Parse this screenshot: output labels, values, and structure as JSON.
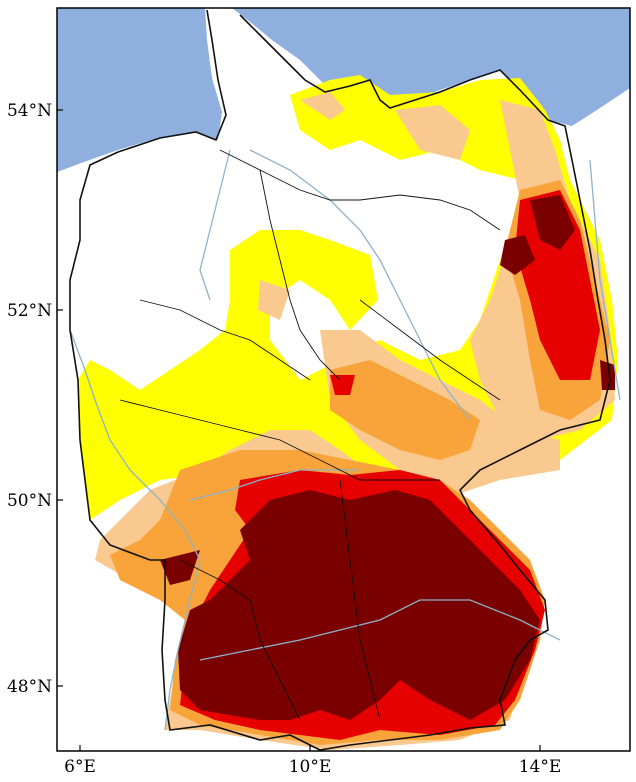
{
  "map": {
    "axes": {
      "lon": {
        "ticks": [
          {
            "value": 6,
            "label": "6°E"
          },
          {
            "value": 10,
            "label": "10°E"
          },
          {
            "value": 14,
            "label": "14°E"
          }
        ]
      },
      "lat": {
        "ticks": [
          {
            "value": 54,
            "label": "54°N"
          },
          {
            "value": 52,
            "label": "52°N"
          },
          {
            "value": 50,
            "label": "50°N"
          },
          {
            "value": 48,
            "label": "48°N"
          }
        ]
      }
    },
    "colors": {
      "sea": "#8fb0df",
      "land": "#ffffff",
      "river": "#8eb2c9",
      "border": "#111111",
      "class_1": "#ffff00",
      "class_2": "#f9c98f",
      "class_3": "#f8a43a",
      "class_4": "#e60000",
      "class_5": "#7a0000"
    }
  }
}
